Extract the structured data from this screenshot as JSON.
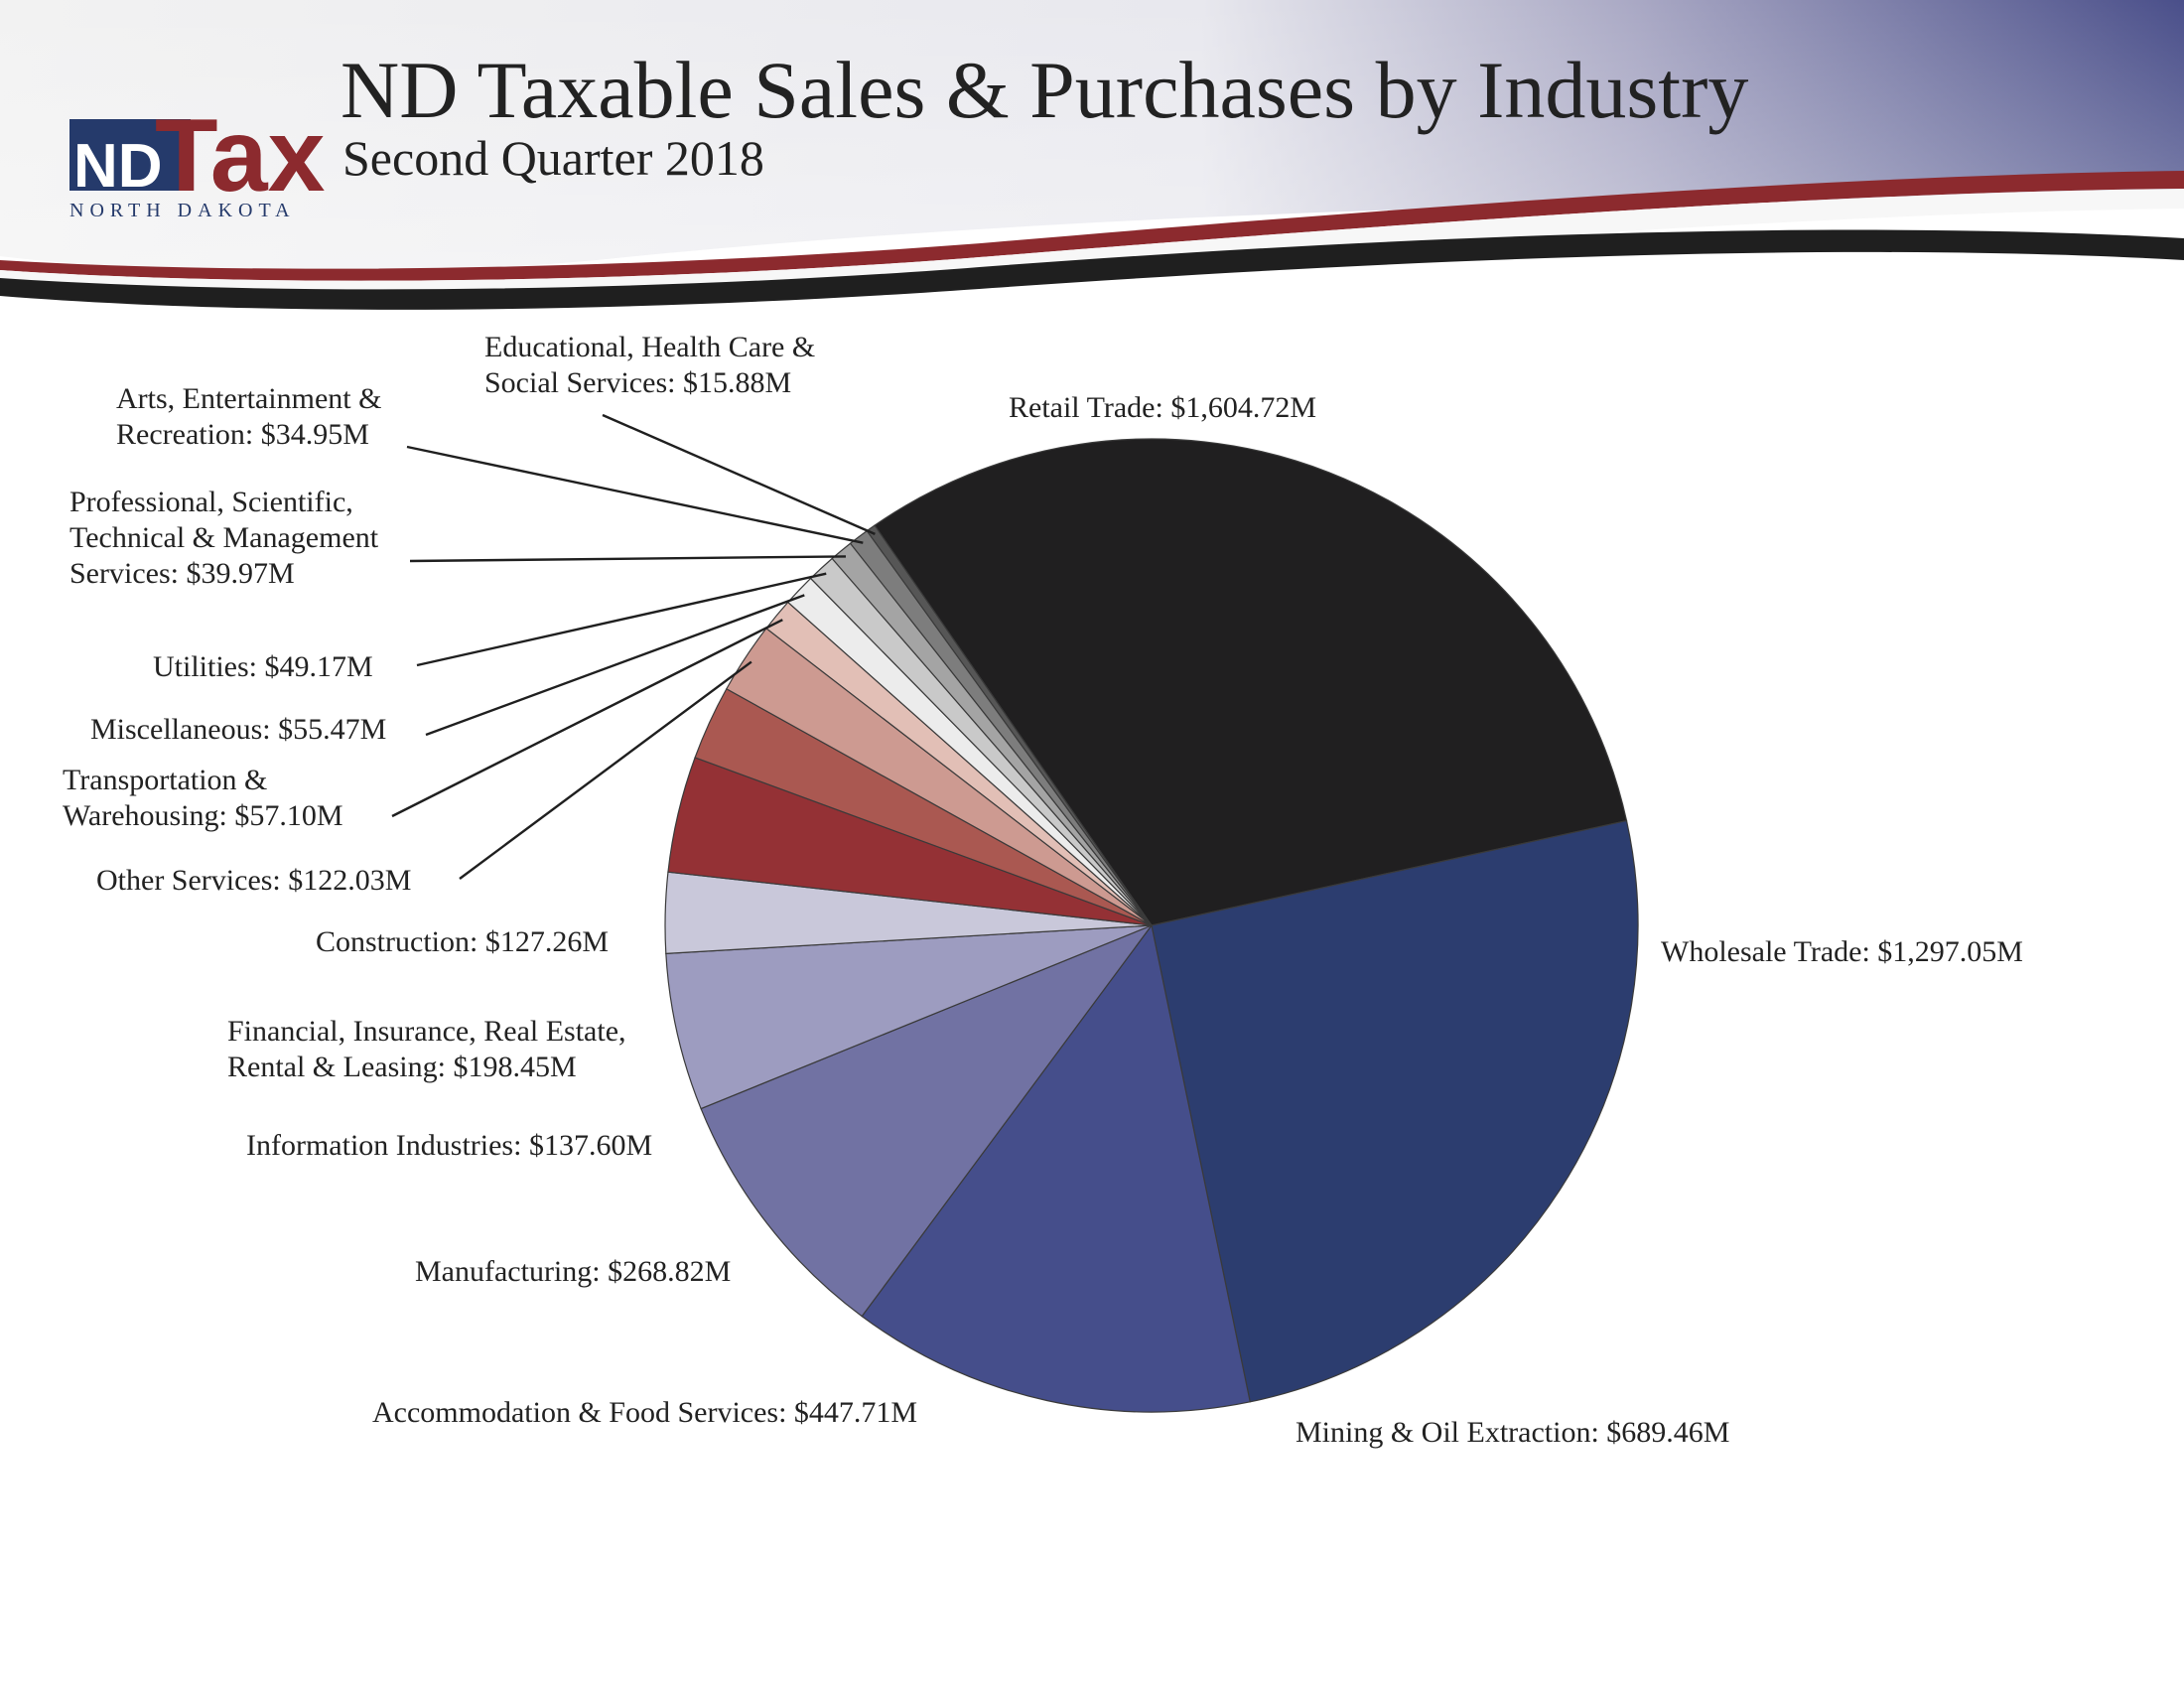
{
  "logo": {
    "abbrev": "ND",
    "word": "Tax",
    "state": "NORTH DAKOTA"
  },
  "header": {
    "title": "ND Taxable Sales & Purchases by Industry",
    "subtitle": "Second Quarter 2018"
  },
  "colors": {
    "header_gradient_end": "#4a4f8a",
    "swoosh_red": "#8c2a2e",
    "swoosh_dark": "#1f1f1f",
    "logo_navy": "#253a6b",
    "logo_red": "#8c2a2e"
  },
  "chart_data": {
    "type": "pie",
    "title": "ND Taxable Sales & Purchases by Industry",
    "subtitle": "Second Quarter 2018",
    "units": "$ millions",
    "slices": [
      {
        "name": "Retail Trade",
        "value": 1604.72,
        "label": "Retail Trade: $1,604.72M",
        "color": "#201f20"
      },
      {
        "name": "Wholesale Trade",
        "value": 1297.05,
        "label": "Wholesale Trade: $1,297.05M",
        "color": "#2c3d6f"
      },
      {
        "name": "Mining & Oil Extraction",
        "value": 689.46,
        "label": "Mining & Oil Extraction: $689.46M",
        "color": "#454e8b"
      },
      {
        "name": "Accommodation & Food Services",
        "value": 447.71,
        "label": "Accommodation & Food Services: $447.71M",
        "color": "#7172a3"
      },
      {
        "name": "Manufacturing",
        "value": 268.82,
        "label": "Manufacturing: $268.82M",
        "color": "#9d9cc0"
      },
      {
        "name": "Information Industries",
        "value": 137.6,
        "label": "Information Industries: $137.60M",
        "color": "#c9c8da"
      },
      {
        "name": "Financial, Insurance, Real Estate, Rental & Leasing",
        "value": 198.45,
        "label_lines": [
          "Financial, Insurance, Real Estate,",
          "Rental & Leasing: $198.45M"
        ],
        "color": "#943135"
      },
      {
        "name": "Construction",
        "value": 127.26,
        "label": "Construction: $127.26M",
        "color": "#aa5851"
      },
      {
        "name": "Other Services",
        "value": 122.03,
        "label": "Other Services: $122.03M",
        "color": "#cd9a91"
      },
      {
        "name": "Transportation & Warehousing",
        "value": 57.1,
        "label_lines": [
          "Transportation &",
          "Warehousing: $57.10M"
        ],
        "color": "#e2bfb6"
      },
      {
        "name": "Miscellaneous",
        "value": 55.47,
        "label": "Miscellaneous: $55.47M",
        "color": "#ececec"
      },
      {
        "name": "Utilities",
        "value": 49.17,
        "label": "Utilities: $49.17M",
        "color": "#c9c9c9"
      },
      {
        "name": "Professional, Scientific, Technical & Management Services",
        "value": 39.97,
        "label_lines": [
          "Professional, Scientific,",
          "Technical & Management",
          "Services: $39.97M"
        ],
        "color": "#a4a4a4"
      },
      {
        "name": "Arts, Entertainment & Recreation",
        "value": 34.95,
        "label_lines": [
          "Arts, Entertainment &",
          "Recreation: $34.95M"
        ],
        "color": "#7d7d7d"
      },
      {
        "name": "Educational, Health Care & Social Services",
        "value": 15.88,
        "label_lines": [
          "Educational, Health Care &",
          "Social Services: $15.88M"
        ],
        "color": "#565656"
      }
    ]
  }
}
